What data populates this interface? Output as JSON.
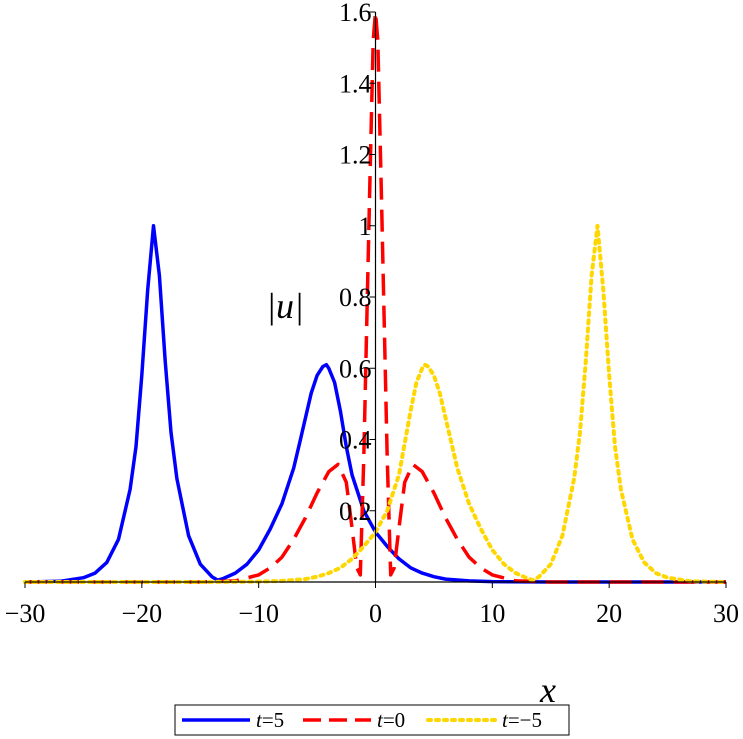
{
  "chart_data": {
    "type": "line",
    "title": "",
    "xlabel": "x",
    "ylabel": "|u|",
    "xlim": [
      -30,
      30
    ],
    "ylim": [
      0,
      1.6
    ],
    "xticks": [
      -30,
      -20,
      -10,
      0,
      10,
      20,
      30
    ],
    "xtick_labels": [
      "−30",
      "−20",
      "−10",
      "0",
      "10",
      "20",
      "30"
    ],
    "yticks": [
      0.2,
      0.4,
      0.6,
      0.8,
      1,
      1.2,
      1.4,
      1.6
    ],
    "ytick_labels": [
      "0.2",
      "0.4",
      "0.6",
      "0.8",
      "1",
      "1.2",
      "1.4",
      "1.6"
    ],
    "grid": false,
    "legend_position": "bottom",
    "series": [
      {
        "name": "t=5",
        "legend_prefix": "t",
        "legend_suffix": "=5",
        "color": "#0000ff",
        "style": "solid",
        "x": [
          -30,
          -27,
          -25,
          -24,
          -23,
          -22,
          -21,
          -20.5,
          -20,
          -19.5,
          -19,
          -18.5,
          -18,
          -17.5,
          -17,
          -16,
          -15,
          -14,
          -13.5,
          -13,
          -12,
          -11,
          -10,
          -9,
          -8,
          -7,
          -6.5,
          -6,
          -5.5,
          -5,
          -4.5,
          -4.2,
          -4,
          -3.5,
          -3,
          -2.5,
          -2,
          -1,
          0,
          1,
          2,
          3,
          4,
          5,
          6,
          8,
          10,
          15,
          20,
          30
        ],
        "y": [
          0.0,
          0.002,
          0.012,
          0.025,
          0.055,
          0.12,
          0.26,
          0.38,
          0.58,
          0.82,
          1.0,
          0.86,
          0.62,
          0.42,
          0.29,
          0.13,
          0.05,
          0.015,
          0.005,
          0.01,
          0.025,
          0.05,
          0.09,
          0.15,
          0.22,
          0.32,
          0.39,
          0.46,
          0.53,
          0.58,
          0.605,
          0.61,
          0.6,
          0.56,
          0.48,
          0.38,
          0.3,
          0.2,
          0.14,
          0.1,
          0.065,
          0.04,
          0.025,
          0.015,
          0.008,
          0.003,
          0.001,
          0.0,
          0.0,
          0.0
        ]
      },
      {
        "name": "t=0",
        "legend_prefix": "t",
        "legend_suffix": "=0",
        "color": "#ff0000",
        "style": "dashed",
        "x": [
          -30,
          -20,
          -15,
          -12,
          -10,
          -9,
          -8,
          -7,
          -6,
          -5,
          -4,
          -3.2,
          -2.5,
          -2,
          -1.6,
          -1.3,
          -1,
          -0.5,
          -0.2,
          0,
          0.2,
          0.5,
          1,
          1.3,
          1.6,
          2,
          2.5,
          3.2,
          4,
          5,
          6,
          7,
          8,
          9,
          10,
          12,
          15,
          20,
          30
        ],
        "y": [
          0.0,
          0.0,
          0.0,
          0.003,
          0.02,
          0.04,
          0.07,
          0.12,
          0.18,
          0.25,
          0.31,
          0.33,
          0.28,
          0.15,
          0.04,
          0.02,
          0.35,
          1.1,
          1.52,
          1.6,
          1.52,
          1.1,
          0.35,
          0.02,
          0.04,
          0.15,
          0.28,
          0.33,
          0.31,
          0.25,
          0.18,
          0.12,
          0.07,
          0.04,
          0.02,
          0.003,
          0.0,
          0.0,
          0.0
        ]
      },
      {
        "name": "t=−5",
        "legend_prefix": "t",
        "legend_suffix": "=−5",
        "color": "#ffd700",
        "style": "dotted",
        "x": [
          -30,
          -15,
          -10,
          -8,
          -6,
          -5,
          -4,
          -3,
          -2,
          -1,
          0,
          1,
          2,
          3,
          3.5,
          4,
          4.2,
          4.5,
          5,
          5.5,
          6,
          7,
          8,
          9,
          10,
          11,
          12,
          13,
          13.5,
          14,
          15,
          16,
          17,
          17.5,
          18,
          18.5,
          19,
          19.5,
          20,
          20.5,
          21,
          22,
          23,
          24,
          25,
          27,
          30
        ],
        "y": [
          0.0,
          0.0,
          0.001,
          0.003,
          0.008,
          0.015,
          0.025,
          0.04,
          0.065,
          0.1,
          0.14,
          0.2,
          0.3,
          0.48,
          0.56,
          0.6,
          0.61,
          0.605,
          0.58,
          0.53,
          0.46,
          0.32,
          0.22,
          0.15,
          0.09,
          0.05,
          0.025,
          0.01,
          0.005,
          0.015,
          0.05,
          0.13,
          0.29,
          0.42,
          0.62,
          0.86,
          1.0,
          0.82,
          0.58,
          0.38,
          0.26,
          0.12,
          0.055,
          0.025,
          0.012,
          0.002,
          0.0
        ]
      }
    ]
  }
}
